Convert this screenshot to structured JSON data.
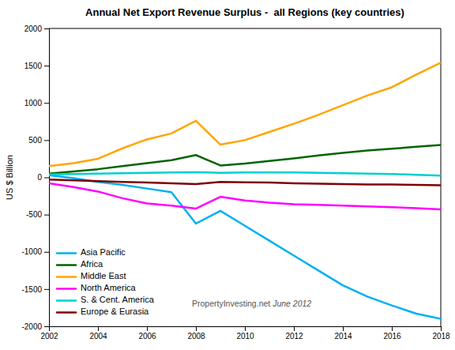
{
  "chart_data": {
    "type": "line",
    "title": "Annual Net Export Revenue Surplus -  all Regions (key countries)",
    "y_label": "US $ Billion",
    "annotations": [
      "PropertyInvesting.net",
      " June 2012"
    ],
    "x": [
      2002,
      2003,
      2004,
      2005,
      2006,
      2007,
      2008,
      2009,
      2010,
      2011,
      2012,
      2013,
      2014,
      2015,
      2016,
      2017,
      2018
    ],
    "xlim": [
      2002,
      2018
    ],
    "xticks": [
      2002,
      2004,
      2006,
      2008,
      2010,
      2012,
      2014,
      2016,
      2018
    ],
    "ylim": [
      -2000,
      2000
    ],
    "yticks": [
      -2000,
      -1500,
      -1000,
      -500,
      0,
      500,
      1000,
      1500,
      2000
    ],
    "grid": false,
    "legend": "lower left",
    "series": [
      {
        "name": "Asia Pacific",
        "color": "#00B0F0",
        "values": [
          30,
          -10,
          -60,
          -100,
          -150,
          -200,
          -620,
          -450,
          -650,
          -850,
          -1050,
          -1250,
          -1450,
          -1600,
          -1720,
          -1830,
          -1900
        ]
      },
      {
        "name": "Africa",
        "color": "#006400",
        "values": [
          50,
          80,
          110,
          150,
          190,
          230,
          300,
          160,
          185,
          220,
          255,
          295,
          330,
          360,
          385,
          410,
          435
        ]
      },
      {
        "name": "Middle East",
        "color": "#FFA500",
        "values": [
          150,
          190,
          250,
          390,
          510,
          590,
          760,
          440,
          500,
          610,
          720,
          840,
          970,
          1100,
          1210,
          1380,
          1540
        ]
      },
      {
        "name": "North America",
        "color": "#FF00FF",
        "values": [
          -80,
          -130,
          -190,
          -280,
          -350,
          -380,
          -420,
          -260,
          -310,
          -340,
          -360,
          -370,
          -380,
          -390,
          -400,
          -415,
          -430
        ]
      },
      {
        "name": "S. & Cent. America",
        "color": "#00CED1",
        "values": [
          40,
          45,
          50,
          55,
          60,
          65,
          70,
          60,
          65,
          65,
          65,
          60,
          55,
          50,
          45,
          35,
          25
        ]
      },
      {
        "name": "Europe & Eurasia",
        "color": "#800000",
        "values": [
          -30,
          -40,
          -50,
          -60,
          -70,
          -80,
          -90,
          -60,
          -65,
          -70,
          -80,
          -85,
          -90,
          -95,
          -95,
          -100,
          -105
        ]
      }
    ]
  }
}
